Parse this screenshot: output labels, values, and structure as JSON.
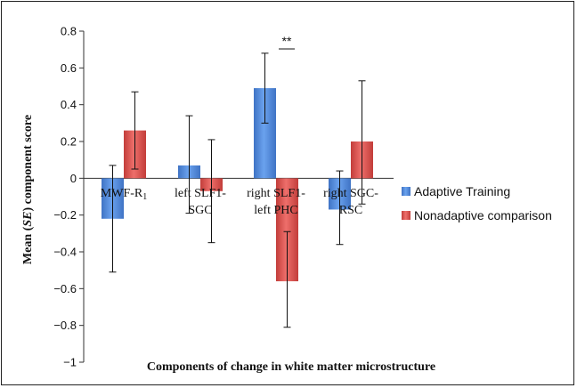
{
  "chart_data": {
    "type": "bar",
    "title": "",
    "xlabel": "Components of change in white matter microstructure",
    "ylabel_parts": [
      "Mean (",
      "SE",
      ") component score"
    ],
    "ylim": [
      -1,
      0.8
    ],
    "yticks": [
      "0.8",
      "0.6",
      "0.4",
      "0.2",
      "0",
      "−0.2",
      "−0.4",
      "−0.6",
      "−0.8",
      "−1"
    ],
    "ytick_values": [
      0.8,
      0.6,
      0.4,
      0.2,
      0,
      -0.2,
      -0.4,
      -0.6,
      -0.8,
      -1
    ],
    "categories": [
      {
        "line1": "MWF-R",
        "sub": "1",
        "line2": ""
      },
      {
        "line1": "left SLF1-",
        "sub": "",
        "line2": "SGC"
      },
      {
        "line1": "right SLF1-",
        "sub": "",
        "line2": "left PHC"
      },
      {
        "line1": "right SGC-",
        "sub": "",
        "line2": "RSC"
      }
    ],
    "series": [
      {
        "name": "Adaptive Training",
        "color": "#4f86d6",
        "values": [
          -0.22,
          0.07,
          0.49,
          -0.17
        ],
        "err_low": [
          -0.51,
          -0.19,
          0.3,
          -0.36
        ],
        "err_high": [
          0.07,
          0.34,
          0.68,
          0.04
        ]
      },
      {
        "name": "Nonadaptive comparison",
        "color": "#d8504d",
        "values": [
          0.26,
          -0.07,
          -0.56,
          0.2
        ],
        "err_low": [
          0.05,
          -0.35,
          -0.81,
          -0.14
        ],
        "err_high": [
          0.47,
          0.21,
          -0.29,
          0.53
        ]
      }
    ],
    "annotations": [
      {
        "text": "**",
        "category_index": 2
      }
    ],
    "legend_position": "right",
    "grid": false
  }
}
